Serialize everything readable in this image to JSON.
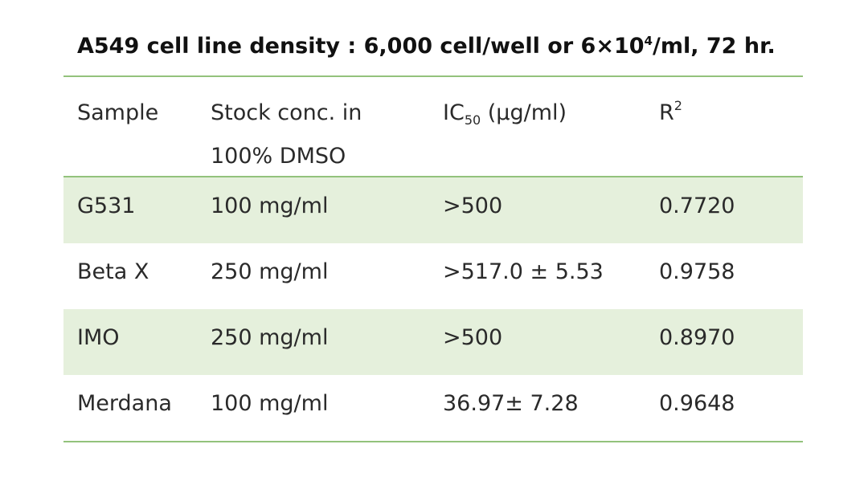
{
  "caption": {
    "prefix": "A549 cell line density : 6,000 cell/well or 6×10",
    "sup": "4",
    "suffix": "/ml, 72 hr."
  },
  "table": {
    "headers": {
      "sample": "Sample",
      "stock_line1": "Stock conc. in",
      "stock_line2": "100% DMSO",
      "ic_prefix": "IC",
      "ic_sub": "50",
      "ic_suffix": " (µg/ml)",
      "r_prefix": "R",
      "r_sup": "2"
    },
    "rows": [
      {
        "sample": "G531",
        "stock": "100 mg/ml",
        "ic50": ">500",
        "r2": "0.7720"
      },
      {
        "sample": "Beta X",
        "stock": "250 mg/ml",
        "ic50": ">517.0 ± 5.53",
        "r2": "0.9758"
      },
      {
        "sample": "IMO",
        "stock": "250 mg/ml",
        "ic50": ">500",
        "r2": "0.8970"
      },
      {
        "sample": "Merdana",
        "stock": "100 mg/ml",
        "ic50": "36.97± 7.28",
        "r2": "0.9648"
      }
    ]
  },
  "colors": {
    "rule": "#93c27c",
    "shade": "#e5f0dc"
  }
}
